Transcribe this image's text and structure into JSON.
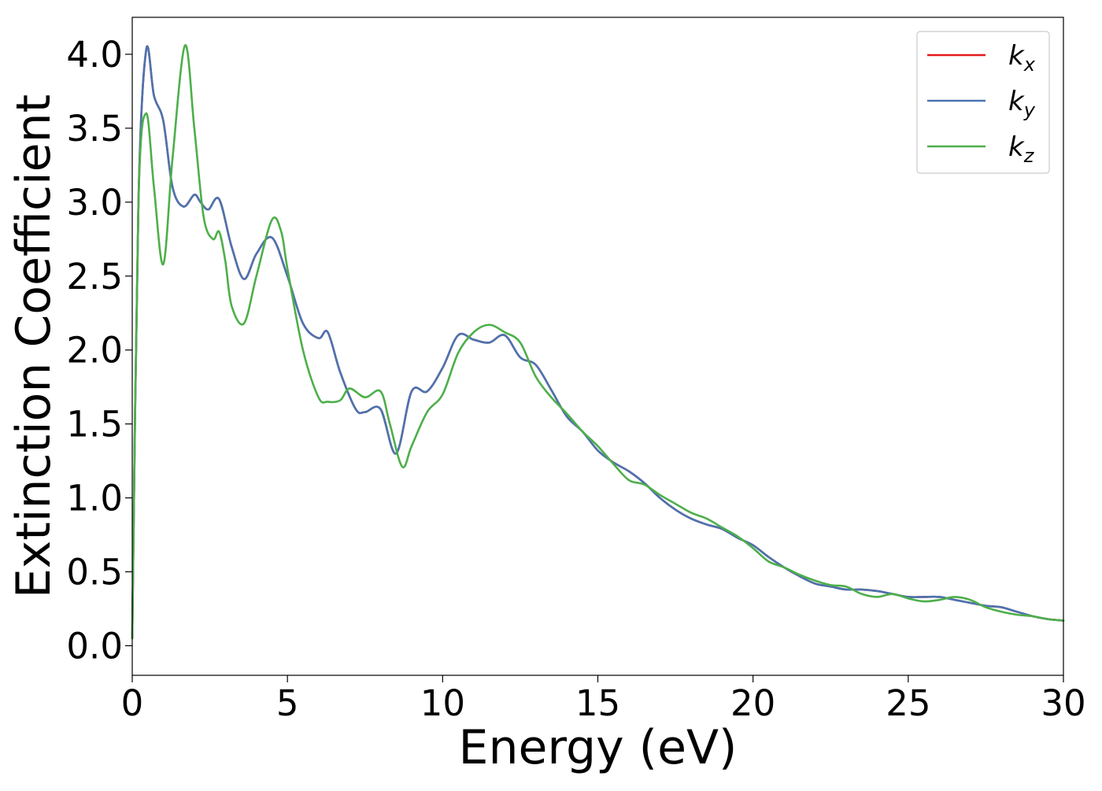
{
  "chart_data": {
    "type": "line",
    "xlabel": "Energy (eV)",
    "ylabel": "Extinction Coefficient",
    "xlim": [
      0,
      30
    ],
    "ylim": [
      -0.2,
      4.25
    ],
    "xticks": [
      0,
      5,
      10,
      15,
      20,
      25,
      30
    ],
    "xtick_labels": [
      "0",
      "5",
      "10",
      "15",
      "20",
      "25",
      "30"
    ],
    "yticks": [
      0.0,
      0.5,
      1.0,
      1.5,
      2.0,
      2.5,
      3.0,
      3.5,
      4.0
    ],
    "ytick_labels": [
      "0.0",
      "0.5",
      "1.0",
      "1.5",
      "2.0",
      "2.5",
      "3.0",
      "3.5",
      "4.0"
    ],
    "grid": false,
    "legend_position": "top-right",
    "series": [
      {
        "name": "k_x",
        "legend_base": "k",
        "legend_sub": "x",
        "color": "#e41a1c",
        "x": [
          0,
          0.2,
          0.45,
          0.7,
          1.0,
          1.3,
          1.65,
          2.0,
          2.2,
          2.45,
          2.8,
          3.2,
          3.6,
          4.0,
          4.5,
          5.0,
          5.5,
          6.0,
          6.3,
          6.7,
          7.2,
          7.5,
          8.0,
          8.5,
          9.0,
          9.5,
          10.0,
          10.5,
          11.0,
          11.5,
          12.0,
          12.5,
          13.0,
          13.5,
          14.0,
          14.5,
          15.0,
          15.5,
          16.0,
          16.5,
          17.0,
          17.5,
          18.0,
          18.5,
          19.0,
          19.5,
          20.0,
          20.5,
          21.0,
          21.5,
          22.0,
          22.5,
          23.0,
          23.5,
          24.0,
          24.5,
          25.0,
          25.5,
          26.0,
          26.5,
          27.0,
          27.5,
          28.0,
          28.5,
          29.0,
          29.5,
          30.0
        ],
        "values": [
          0.05,
          3.0,
          4.03,
          3.72,
          3.55,
          3.1,
          2.97,
          3.05,
          3.0,
          2.95,
          3.02,
          2.7,
          2.48,
          2.65,
          2.76,
          2.5,
          2.18,
          2.08,
          2.12,
          1.85,
          1.6,
          1.58,
          1.6,
          1.3,
          1.72,
          1.72,
          1.88,
          2.1,
          2.07,
          2.05,
          2.1,
          1.95,
          1.9,
          1.73,
          1.55,
          1.45,
          1.32,
          1.24,
          1.18,
          1.1,
          1.0,
          0.92,
          0.86,
          0.82,
          0.79,
          0.73,
          0.68,
          0.6,
          0.53,
          0.47,
          0.42,
          0.4,
          0.38,
          0.38,
          0.37,
          0.35,
          0.33,
          0.33,
          0.33,
          0.31,
          0.29,
          0.27,
          0.26,
          0.23,
          0.2,
          0.18,
          0.17
        ]
      },
      {
        "name": "k_y",
        "legend_base": "k",
        "legend_sub": "y",
        "color": "#4a74b0",
        "x": [
          0,
          0.2,
          0.45,
          0.7,
          1.0,
          1.3,
          1.65,
          2.0,
          2.2,
          2.45,
          2.8,
          3.2,
          3.6,
          4.0,
          4.5,
          5.0,
          5.5,
          6.0,
          6.3,
          6.7,
          7.2,
          7.5,
          8.0,
          8.5,
          9.0,
          9.5,
          10.0,
          10.5,
          11.0,
          11.5,
          12.0,
          12.5,
          13.0,
          13.5,
          14.0,
          14.5,
          15.0,
          15.5,
          16.0,
          16.5,
          17.0,
          17.5,
          18.0,
          18.5,
          19.0,
          19.5,
          20.0,
          20.5,
          21.0,
          21.5,
          22.0,
          22.5,
          23.0,
          23.5,
          24.0,
          24.5,
          25.0,
          25.5,
          26.0,
          26.5,
          27.0,
          27.5,
          28.0,
          28.5,
          29.0,
          29.5,
          30.0
        ],
        "values": [
          0.05,
          3.0,
          4.03,
          3.72,
          3.55,
          3.1,
          2.97,
          3.05,
          3.0,
          2.95,
          3.02,
          2.7,
          2.48,
          2.65,
          2.76,
          2.5,
          2.18,
          2.08,
          2.12,
          1.85,
          1.6,
          1.58,
          1.6,
          1.3,
          1.72,
          1.72,
          1.88,
          2.1,
          2.07,
          2.05,
          2.1,
          1.95,
          1.9,
          1.73,
          1.55,
          1.45,
          1.32,
          1.24,
          1.18,
          1.1,
          1.0,
          0.92,
          0.86,
          0.82,
          0.79,
          0.73,
          0.68,
          0.6,
          0.53,
          0.47,
          0.42,
          0.4,
          0.38,
          0.38,
          0.37,
          0.35,
          0.33,
          0.33,
          0.33,
          0.31,
          0.29,
          0.27,
          0.26,
          0.23,
          0.2,
          0.18,
          0.17
        ]
      },
      {
        "name": "k_z",
        "legend_base": "k",
        "legend_sub": "z",
        "color": "#4daf4a",
        "x": [
          0,
          0.2,
          0.45,
          0.7,
          1.0,
          1.3,
          1.7,
          2.0,
          2.3,
          2.6,
          2.8,
          3.0,
          3.2,
          3.6,
          4.0,
          4.5,
          4.8,
          5.0,
          5.5,
          6.0,
          6.3,
          6.7,
          7.0,
          7.5,
          8.0,
          8.3,
          8.7,
          9.0,
          9.5,
          10.0,
          10.5,
          11.0,
          11.5,
          12.0,
          12.5,
          13.0,
          13.5,
          14.0,
          14.5,
          15.0,
          15.5,
          16.0,
          16.5,
          17.0,
          17.5,
          18.0,
          18.5,
          19.0,
          19.5,
          20.0,
          20.5,
          21.0,
          21.5,
          22.0,
          22.5,
          23.0,
          23.5,
          24.0,
          24.5,
          25.0,
          25.5,
          26.0,
          26.5,
          27.0,
          27.5,
          28.0,
          28.5,
          29.0,
          29.5,
          30.0
        ],
        "values": [
          0.05,
          3.0,
          3.6,
          3.1,
          2.58,
          3.3,
          4.06,
          3.5,
          2.9,
          2.75,
          2.8,
          2.6,
          2.3,
          2.18,
          2.5,
          2.88,
          2.8,
          2.55,
          2.0,
          1.68,
          1.65,
          1.66,
          1.74,
          1.68,
          1.72,
          1.5,
          1.21,
          1.35,
          1.58,
          1.7,
          1.98,
          2.12,
          2.17,
          2.12,
          2.05,
          1.82,
          1.68,
          1.57,
          1.45,
          1.35,
          1.23,
          1.12,
          1.09,
          1.02,
          0.96,
          0.9,
          0.86,
          0.8,
          0.74,
          0.66,
          0.57,
          0.53,
          0.48,
          0.44,
          0.41,
          0.4,
          0.35,
          0.33,
          0.35,
          0.32,
          0.3,
          0.31,
          0.33,
          0.31,
          0.26,
          0.23,
          0.21,
          0.2,
          0.18,
          0.17
        ]
      }
    ]
  }
}
